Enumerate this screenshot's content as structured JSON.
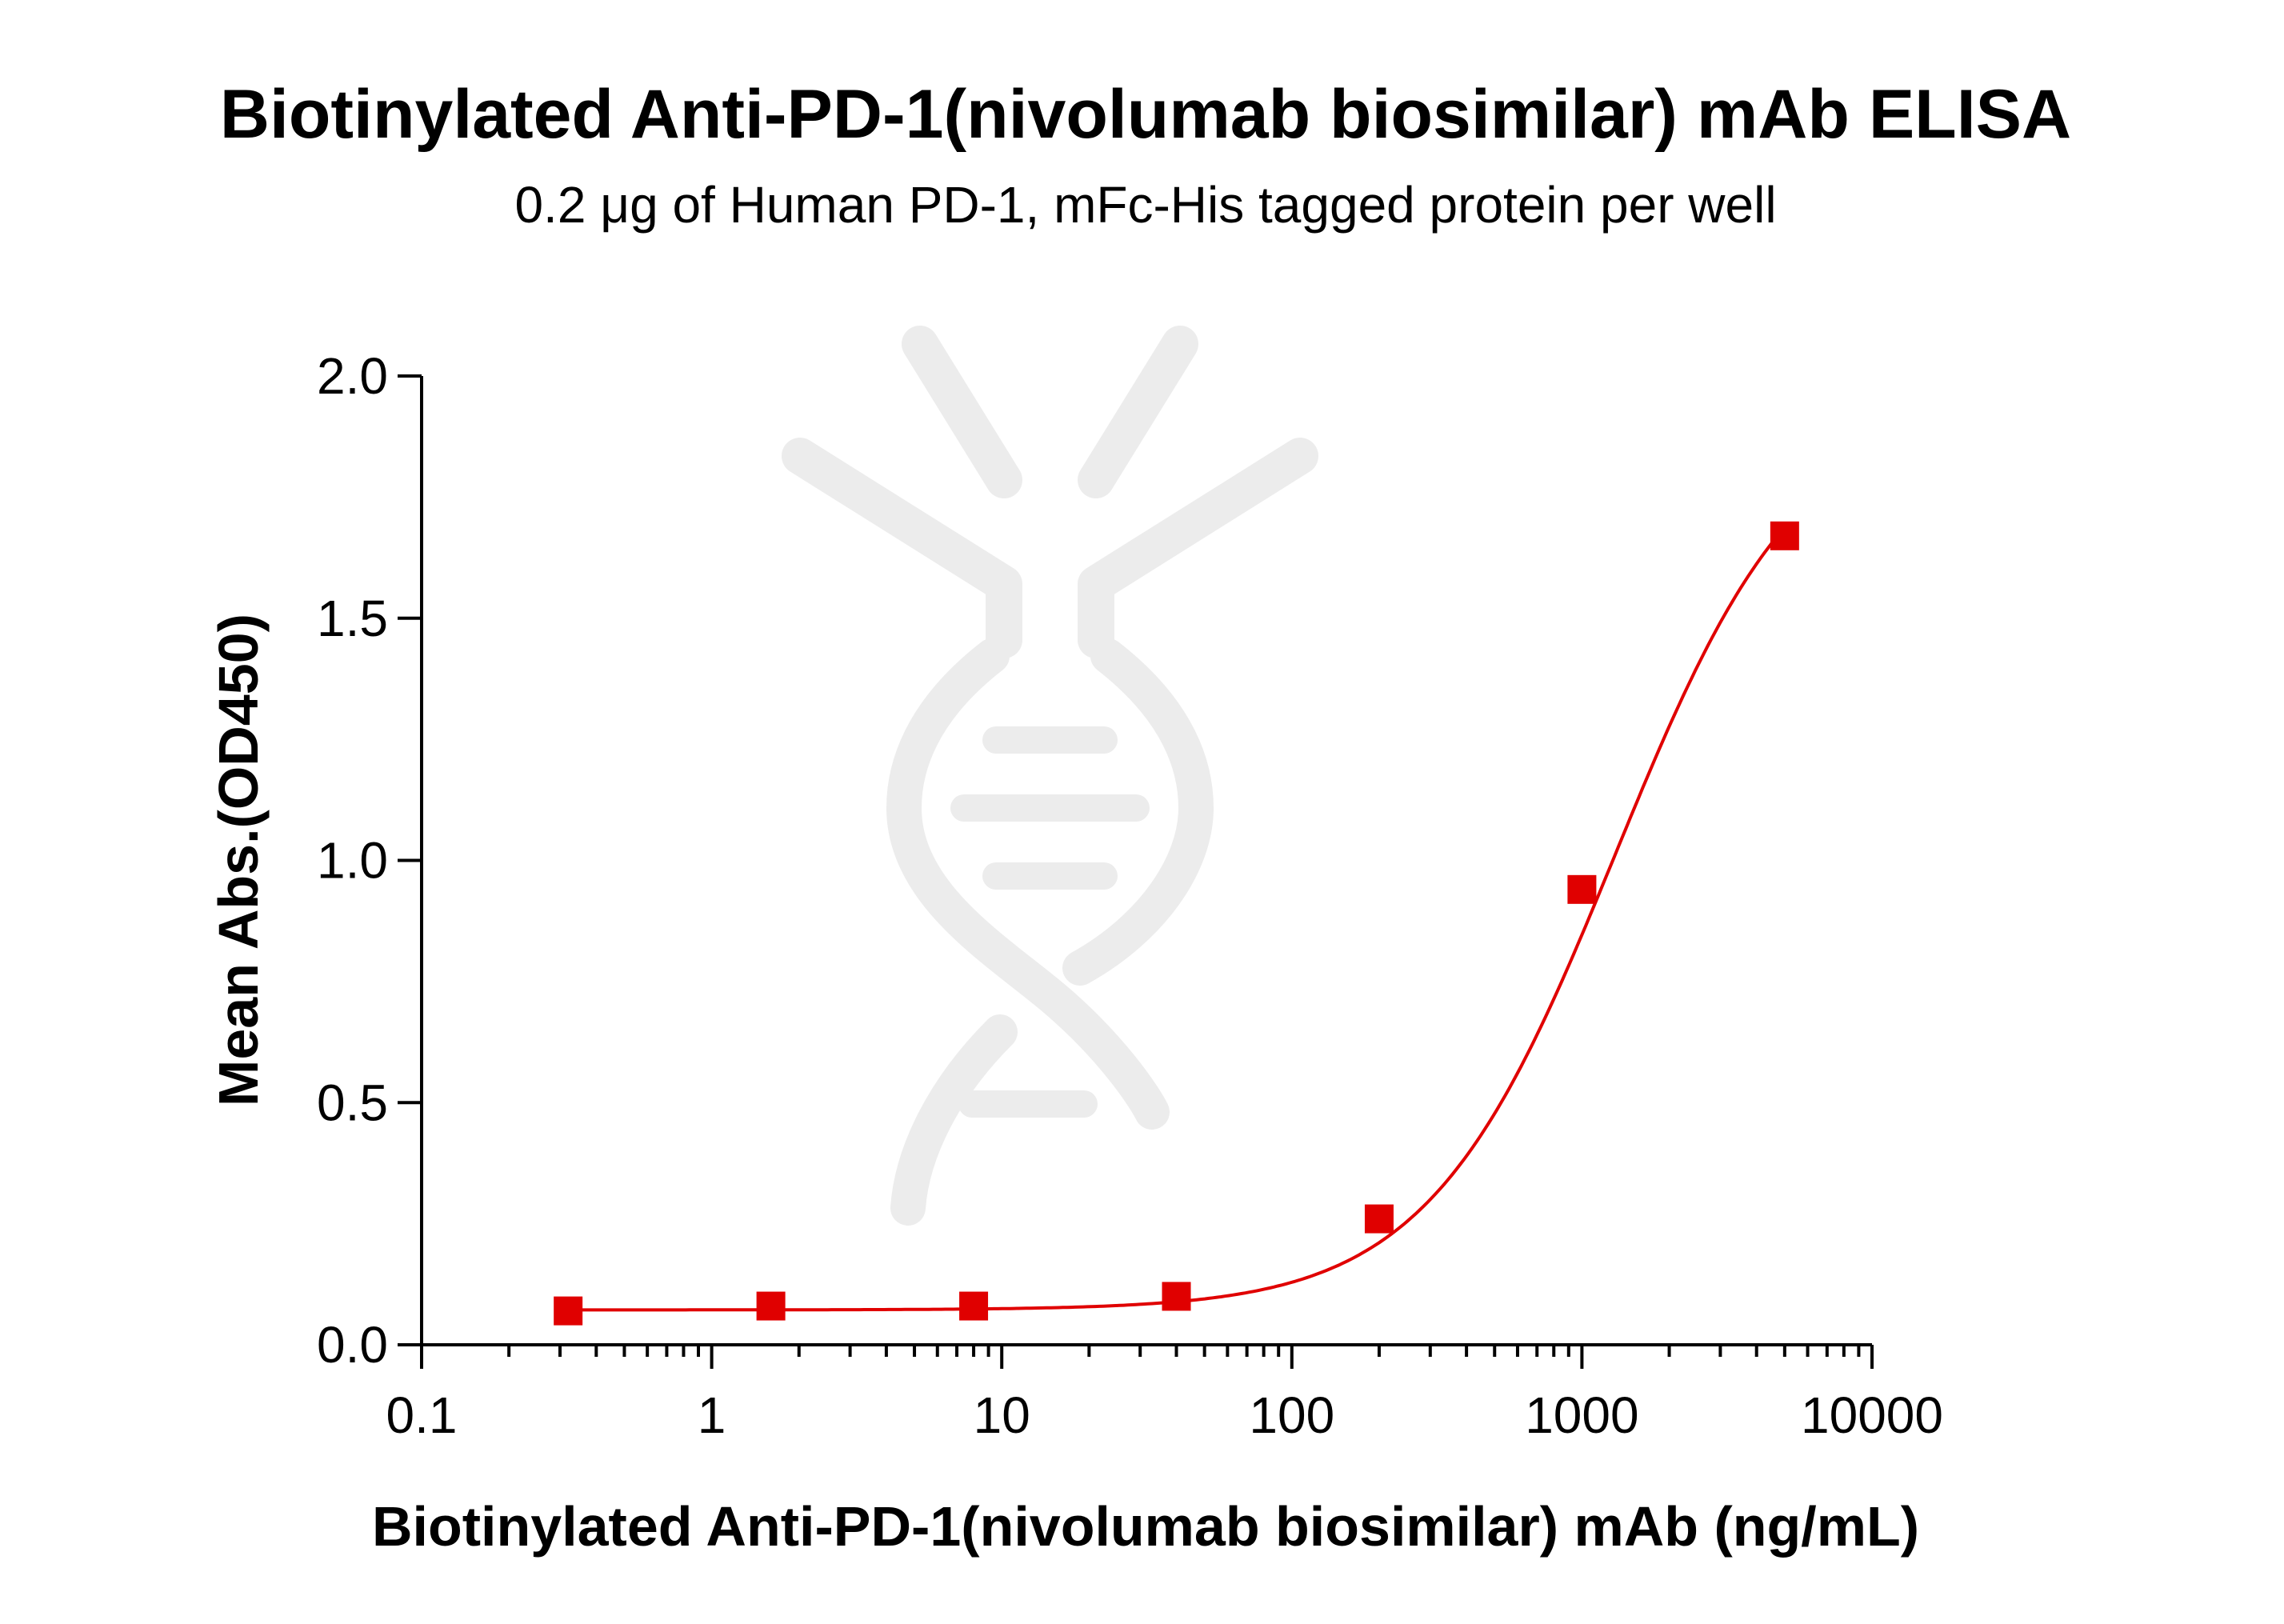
{
  "chart_data": {
    "type": "scatter",
    "title": "Biotinylated Anti-PD-1(nivolumab biosimilar) mAb ELISA",
    "subtitle": "0.2 μg of Human PD-1, mFc-His tagged protein per well",
    "xlabel": "Biotinylated Anti-PD-1(nivolumab biosimilar) mAb (ng/mL)",
    "ylabel": "Mean Abs.(OD450)",
    "xscale": "log",
    "xlim": [
      0.1,
      10000
    ],
    "ylim": [
      0,
      2.0
    ],
    "xticks": [
      0.1,
      1,
      10,
      100,
      1000,
      10000
    ],
    "xtick_labels": [
      "0.1",
      "1",
      "10",
      "100",
      "1000",
      "10000"
    ],
    "yticks": [
      0,
      0.5,
      1.0,
      1.5,
      2.0
    ],
    "ytick_labels": [
      "0.0",
      "0.5",
      "1.0",
      "1.5",
      "2.0"
    ],
    "grid": false,
    "color": "#e00000",
    "series": [
      {
        "marker": "square",
        "fit": "four-parameter logistic",
        "x": [
          0.32,
          1.6,
          8,
          40,
          200,
          1000,
          5000
        ],
        "y": [
          0.07,
          0.08,
          0.08,
          0.1,
          0.26,
          0.94,
          1.67
        ]
      }
    ]
  }
}
